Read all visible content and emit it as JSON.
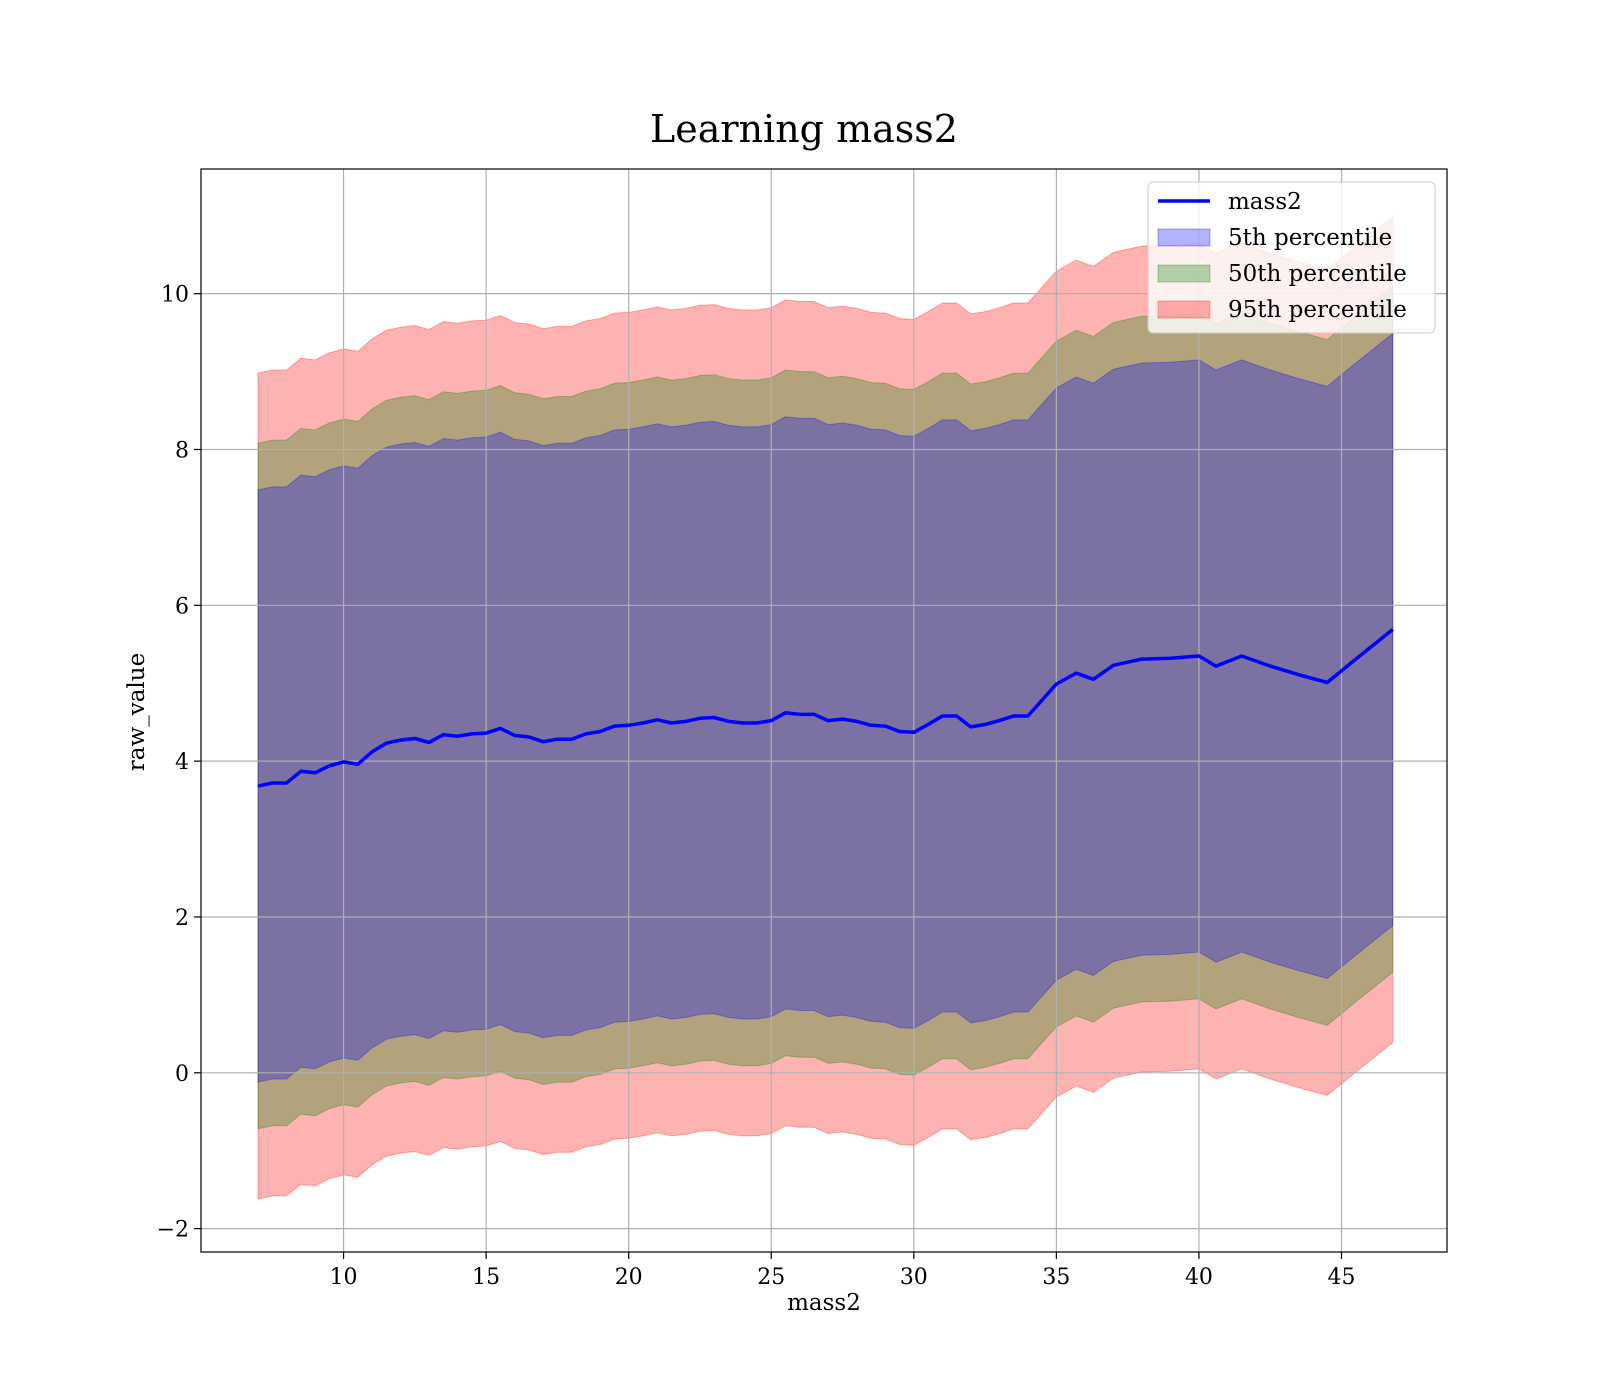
{
  "chart_data": {
    "type": "area",
    "title": "Learning mass2",
    "xlabel": "mass2",
    "ylabel": "raw_value",
    "xlim": [
      5.0,
      48.7
    ],
    "ylim": [
      -2.3,
      11.6
    ],
    "xticks": [
      10,
      15,
      20,
      25,
      30,
      35,
      40,
      45
    ],
    "yticks": [
      -2,
      0,
      2,
      4,
      6,
      8,
      10
    ],
    "grid": true,
    "legend_position": "top-right",
    "x": [
      7,
      7.5,
      8,
      8.5,
      9,
      9.5,
      10,
      10.5,
      11,
      11.5,
      12,
      12.5,
      13,
      13.5,
      14,
      14.5,
      15,
      15.5,
      16,
      16.5,
      17,
      17.5,
      18,
      18.5,
      19,
      19.5,
      20,
      20.5,
      21,
      21.5,
      22,
      22.5,
      23,
      23.5,
      24,
      24.5,
      25,
      25.5,
      26,
      26.5,
      27,
      27.5,
      28,
      28.5,
      29,
      29.5,
      30,
      30.5,
      31,
      31.5,
      32,
      32.5,
      33,
      33.5,
      34,
      35,
      35.7,
      36.3,
      37,
      38,
      39,
      40,
      40.6,
      41.5,
      42.5,
      43.5,
      44.5,
      45.5,
      46.8
    ],
    "series": [
      {
        "name": "mass2",
        "kind": "line",
        "color": "#0000ff",
        "values": [
          3.68,
          3.72,
          3.72,
          3.87,
          3.85,
          3.94,
          3.99,
          3.96,
          4.12,
          4.23,
          4.27,
          4.29,
          4.24,
          4.34,
          4.32,
          4.35,
          4.36,
          4.42,
          4.33,
          4.31,
          4.25,
          4.28,
          4.28,
          4.35,
          4.38,
          4.45,
          4.46,
          4.49,
          4.53,
          4.49,
          4.51,
          4.55,
          4.56,
          4.51,
          4.49,
          4.49,
          4.52,
          4.62,
          4.6,
          4.6,
          4.52,
          4.54,
          4.51,
          4.46,
          4.45,
          4.38,
          4.37,
          4.47,
          4.58,
          4.58,
          4.44,
          4.47,
          4.52,
          4.58,
          4.58,
          4.99,
          5.13,
          5.05,
          5.23,
          5.31,
          5.32,
          5.35,
          5.22,
          5.35,
          5.22,
          5.11,
          5.01,
          5.31,
          5.69
        ]
      },
      {
        "name": "5th percentile",
        "kind": "band",
        "color": "#0000ff",
        "half_width": 3.8
      },
      {
        "name": "50th percentile",
        "kind": "band",
        "color": "#008000",
        "half_width": 4.4
      },
      {
        "name": "95th percentile",
        "kind": "band",
        "color": "#ff0000",
        "half_width": 5.3
      }
    ]
  }
}
